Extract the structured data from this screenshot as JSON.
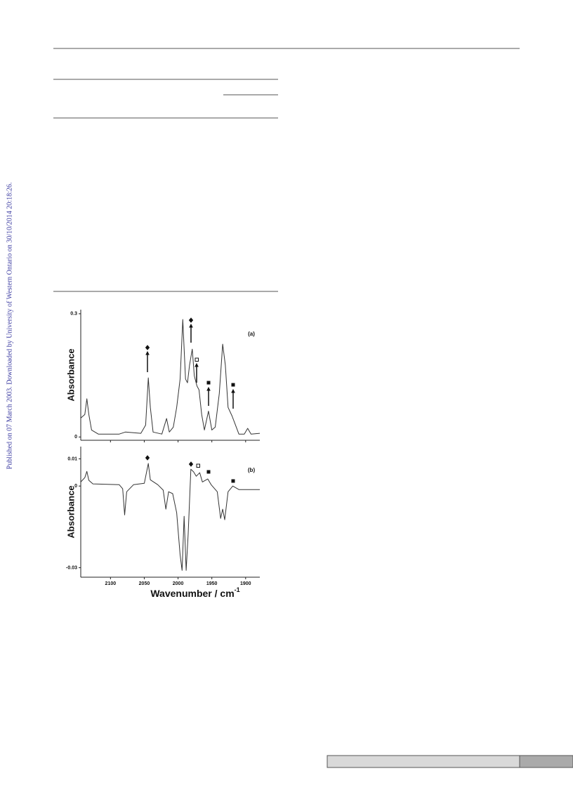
{
  "side_note": "Published on 07 March 2003. Downloaded by University of Western Ontario on 30/10/2014 20:18:26.",
  "chart_data": [
    {
      "type": "line",
      "panel_label": "(a)",
      "ylabel": "Absorbance",
      "color": "#333333",
      "xlim": [
        2144,
        1879
      ],
      "ylim": [
        -0.008,
        0.31
      ],
      "yticks": [
        0,
        0.3
      ],
      "x": [
        2144,
        2138,
        2135,
        2132,
        2128,
        2118,
        2087,
        2078,
        2055,
        2048,
        2044,
        2041,
        2037,
        2024,
        2017,
        2013,
        2007,
        2002,
        1997,
        1993,
        1989,
        1986,
        1983,
        1979,
        1976,
        1972,
        1969,
        1965,
        1961,
        1955,
        1950,
        1945,
        1939,
        1934,
        1930,
        1926,
        1920,
        1915,
        1910,
        1902,
        1897,
        1892,
        1879
      ],
      "values": [
        0.046,
        0.055,
        0.093,
        0.055,
        0.017,
        0.007,
        0.007,
        0.012,
        0.009,
        0.029,
        0.144,
        0.072,
        0.012,
        0.007,
        0.045,
        0.012,
        0.024,
        0.072,
        0.141,
        0.286,
        0.141,
        0.132,
        0.175,
        0.214,
        0.149,
        0.124,
        0.115,
        0.055,
        0.017,
        0.063,
        0.017,
        0.024,
        0.106,
        0.226,
        0.175,
        0.072,
        0.051,
        0.029,
        0.007,
        0.007,
        0.021,
        0.007,
        0.009
      ]
    },
    {
      "type": "line",
      "panel_label": "(b)",
      "ylabel": "Absorbance",
      "color": "#333333",
      "xlabel": {
        "text": "Wavenumber / cm",
        "sup": "-1"
      },
      "xlim": [
        2144,
        1879
      ],
      "ylim": [
        -0.0335,
        0.0145
      ],
      "yticks": [
        -0.03,
        0,
        0.01
      ],
      "xticks": [
        2100,
        2050,
        2000,
        1950,
        1900
      ],
      "x": [
        2144,
        2138,
        2135,
        2132,
        2126,
        2087,
        2082,
        2079,
        2076,
        2066,
        2050,
        2044,
        2041,
        2030,
        2022,
        2018,
        2014,
        2008,
        2002,
        1997,
        1994,
        1991,
        1988,
        1985,
        1981,
        1977,
        1973,
        1968,
        1964,
        1956,
        1951,
        1942,
        1937,
        1934,
        1931,
        1926,
        1919,
        1910,
        1895,
        1879
      ],
      "values": [
        0.0015,
        0.0031,
        0.0054,
        0.0021,
        0.0008,
        0.0005,
        -0.001,
        -0.0106,
        -0.0021,
        0.0005,
        0.001,
        0.0083,
        0.0023,
        0.0005,
        -0.0015,
        -0.0085,
        -0.0021,
        -0.0028,
        -0.0098,
        -0.0253,
        -0.031,
        -0.0111,
        -0.031,
        -0.0175,
        0.0062,
        0.0052,
        0.0036,
        0.0049,
        0.0015,
        0.0026,
        0.0005,
        -0.0021,
        -0.0119,
        -0.0085,
        -0.0124,
        -0.0021,
        0,
        -0.0013,
        -0.0013,
        -0.0013
      ]
    }
  ]
}
